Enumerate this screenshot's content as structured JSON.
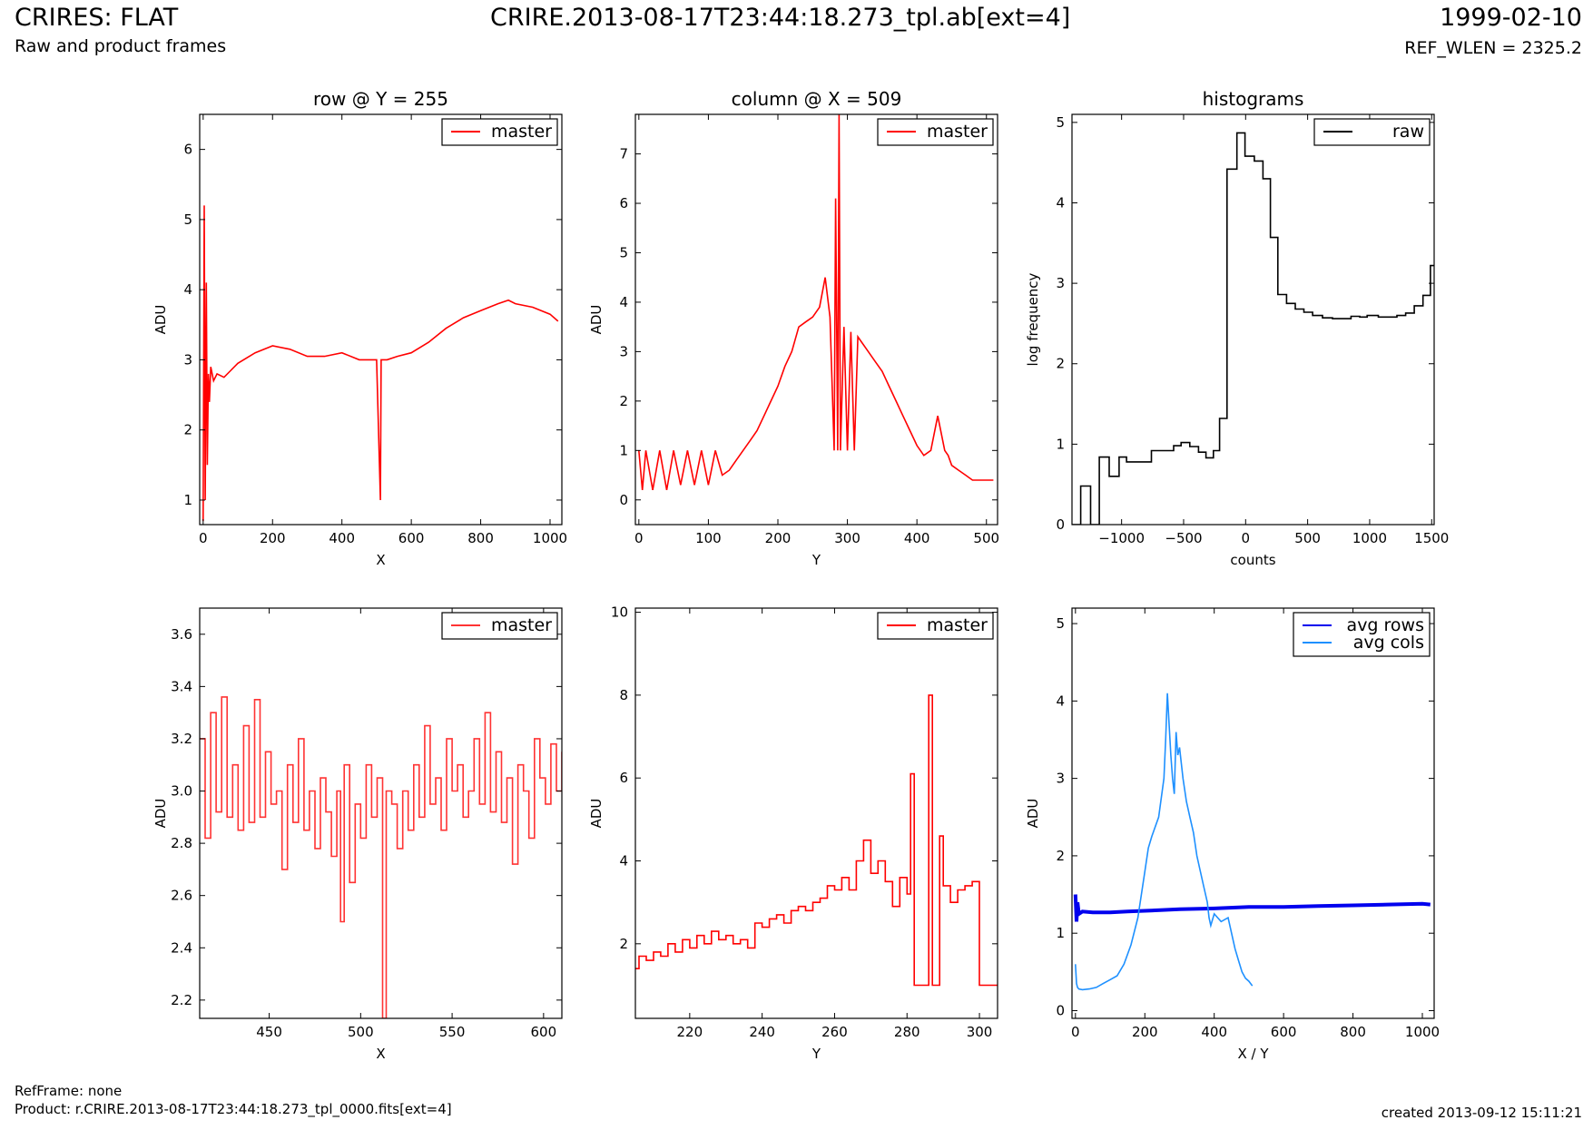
{
  "header": {
    "title": "CRIRES: FLAT",
    "subtitle": "Raw and product frames",
    "file": "CRIRE.2013-08-17T23:44:18.273_tpl.ab[ext=4]",
    "date": "1999-02-10",
    "ref_wlen": "REF_WLEN = 2325.2"
  },
  "footer": {
    "ref_frame": "RefFrame: none",
    "product": "Product: r.CRIRE.2013-08-17T23:44:18.273_tpl_0000.fits[ext=4]",
    "created": "created 2013-09-12 15:11:21"
  },
  "colors": {
    "master": "#ff0000",
    "master_zoom": "#ff3333",
    "raw": "#000000",
    "avg_rows": "#0000ee",
    "avg_cols": "#1e90ff"
  },
  "chart_data": [
    {
      "type": "line",
      "title": "row @ Y = 255",
      "xlabel": "X",
      "ylabel": "ADU",
      "xlim": [
        -10,
        1034
      ],
      "ylim": [
        0.65,
        6.5
      ],
      "xticks": [
        0,
        200,
        400,
        600,
        800,
        1000
      ],
      "yticks": [
        1,
        2,
        3,
        4,
        5,
        6
      ],
      "legend": "top-right",
      "series": [
        {
          "name": "master",
          "color": "#ff0000",
          "x": [
            0,
            3,
            6,
            9,
            12,
            15,
            18,
            22,
            30,
            40,
            60,
            80,
            100,
            150,
            200,
            250,
            300,
            350,
            400,
            450,
            500,
            511,
            513,
            530,
            560,
            600,
            650,
            700,
            750,
            800,
            850,
            880,
            900,
            950,
            1000,
            1023
          ],
          "y": [
            0.7,
            5.2,
            1.0,
            4.1,
            1.5,
            2.8,
            2.4,
            2.9,
            2.7,
            2.8,
            2.75,
            2.85,
            2.95,
            3.1,
            3.2,
            3.15,
            3.05,
            3.05,
            3.1,
            3.0,
            3.0,
            1.0,
            3.0,
            3.0,
            3.05,
            3.1,
            3.25,
            3.45,
            3.6,
            3.7,
            3.8,
            3.85,
            3.8,
            3.75,
            3.65,
            3.55
          ]
        }
      ]
    },
    {
      "type": "line",
      "title": "column @ X = 509",
      "xlabel": "Y",
      "ylabel": "ADU",
      "xlim": [
        -5,
        516
      ],
      "ylim": [
        -0.5,
        7.8
      ],
      "xticks": [
        0,
        100,
        200,
        300,
        400,
        500
      ],
      "yticks": [
        0,
        1,
        2,
        3,
        4,
        5,
        6,
        7
      ],
      "legend": "top-right",
      "series": [
        {
          "name": "master",
          "color": "#ff0000",
          "x": [
            0,
            5,
            10,
            20,
            30,
            40,
            50,
            60,
            70,
            80,
            90,
            100,
            110,
            120,
            130,
            140,
            150,
            160,
            170,
            180,
            190,
            200,
            210,
            220,
            230,
            240,
            250,
            260,
            268,
            275,
            281,
            283,
            286,
            288,
            290,
            295,
            300,
            305,
            310,
            315,
            320,
            330,
            340,
            350,
            360,
            370,
            380,
            390,
            400,
            410,
            420,
            430,
            440,
            445,
            450,
            460,
            470,
            480,
            490,
            500,
            510
          ],
          "y": [
            1.0,
            0.2,
            1.0,
            0.2,
            1.0,
            0.2,
            1.0,
            0.3,
            1.0,
            0.3,
            1.0,
            0.3,
            1.0,
            0.5,
            0.6,
            0.8,
            1.0,
            1.2,
            1.4,
            1.7,
            2.0,
            2.3,
            2.7,
            3.0,
            3.5,
            3.6,
            3.7,
            3.9,
            4.5,
            3.7,
            1.0,
            6.1,
            1.0,
            7.8,
            1.0,
            3.5,
            1.0,
            3.4,
            1.0,
            3.3,
            3.2,
            3.0,
            2.8,
            2.6,
            2.3,
            2.0,
            1.7,
            1.4,
            1.1,
            0.9,
            1.0,
            1.7,
            1.0,
            0.9,
            0.7,
            0.6,
            0.5,
            0.4,
            0.4,
            0.4,
            0.4
          ]
        }
      ]
    },
    {
      "type": "line",
      "title": "histograms",
      "xlabel": "counts",
      "ylabel": "log frequency",
      "xlim": [
        -1400,
        1520
      ],
      "ylim": [
        0,
        5.1
      ],
      "xticks": [
        -1000,
        -500,
        0,
        500,
        1000,
        1500
      ],
      "xtick_labels": [
        "−1000",
        "−500",
        "0",
        "500",
        "1000",
        "1500"
      ],
      "yticks": [
        0,
        1,
        2,
        3,
        4,
        5
      ],
      "legend": "top-right",
      "series": [
        {
          "name": "raw",
          "color": "#000000",
          "step": true,
          "x": [
            -1400,
            -1330,
            -1250,
            -1180,
            -1100,
            -1020,
            -960,
            -900,
            -760,
            -650,
            -580,
            -520,
            -450,
            -380,
            -320,
            -260,
            -210,
            -150,
            -70,
            -5,
            70,
            140,
            200,
            260,
            330,
            400,
            470,
            540,
            620,
            700,
            770,
            850,
            920,
            980,
            1070,
            1140,
            1220,
            1290,
            1360,
            1430,
            1490,
            1520
          ],
          "y": [
            0,
            0.48,
            0,
            0.84,
            0.6,
            0.84,
            0.78,
            0.78,
            0.92,
            0.92,
            0.98,
            1.02,
            0.97,
            0.9,
            0.83,
            0.92,
            1.32,
            4.42,
            4.87,
            4.58,
            4.52,
            4.3,
            3.57,
            2.86,
            2.75,
            2.68,
            2.64,
            2.6,
            2.57,
            2.56,
            2.56,
            2.59,
            2.58,
            2.6,
            2.58,
            2.58,
            2.6,
            2.63,
            2.72,
            2.85,
            3.22,
            3.22
          ]
        }
      ]
    },
    {
      "type": "line",
      "xlabel": "X",
      "ylabel": "ADU",
      "xlim": [
        412,
        610
      ],
      "ylim": [
        2.13,
        3.7
      ],
      "xticks": [
        450,
        500,
        550,
        600
      ],
      "yticks": [
        2.2,
        2.4,
        2.6,
        2.8,
        3.0,
        3.2,
        3.4,
        3.6
      ],
      "legend": "top-right",
      "series": [
        {
          "name": "master",
          "color": "#ff3333",
          "step": true,
          "x": [
            412,
            415,
            418,
            421,
            424,
            427,
            430,
            433,
            436,
            439,
            442,
            445,
            448,
            451,
            454,
            457,
            460,
            463,
            466,
            469,
            472,
            475,
            478,
            481,
            484,
            487,
            489,
            491,
            494,
            497,
            500,
            503,
            506,
            509,
            512,
            514,
            517,
            520,
            523,
            526,
            529,
            532,
            535,
            538,
            541,
            544,
            547,
            550,
            553,
            556,
            559,
            562,
            565,
            568,
            571,
            574,
            577,
            580,
            583,
            586,
            589,
            592,
            595,
            598,
            601,
            604,
            607,
            610
          ],
          "y": [
            3.2,
            2.82,
            3.3,
            2.92,
            3.36,
            2.9,
            3.1,
            2.85,
            3.25,
            2.88,
            3.35,
            2.9,
            3.15,
            2.95,
            3.0,
            2.7,
            3.1,
            2.88,
            3.2,
            2.85,
            3.0,
            2.78,
            3.05,
            2.92,
            2.75,
            3.0,
            2.5,
            3.1,
            2.65,
            2.95,
            2.82,
            3.1,
            2.9,
            3.05,
            2.13,
            3.0,
            2.95,
            2.78,
            3.0,
            2.85,
            3.1,
            2.9,
            3.25,
            2.95,
            3.05,
            2.85,
            3.2,
            3.0,
            3.1,
            2.9,
            3.0,
            3.2,
            2.95,
            3.3,
            2.92,
            3.15,
            2.88,
            3.05,
            2.72,
            3.1,
            3.0,
            2.82,
            3.2,
            3.05,
            2.95,
            3.18,
            3.0,
            3.15
          ]
        }
      ]
    },
    {
      "type": "line",
      "xlabel": "Y",
      "ylabel": "ADU",
      "xlim": [
        205,
        305
      ],
      "ylim": [
        0.2,
        10.1
      ],
      "xticks": [
        220,
        240,
        260,
        280,
        300
      ],
      "yticks": [
        2,
        4,
        6,
        8,
        10
      ],
      "legend": "top-right",
      "series": [
        {
          "name": "master",
          "color": "#ff0000",
          "step": true,
          "x": [
            205,
            206,
            208,
            210,
            212,
            214,
            216,
            218,
            220,
            222,
            224,
            226,
            228,
            230,
            232,
            234,
            236,
            238,
            240,
            242,
            244,
            246,
            248,
            250,
            252,
            254,
            256,
            258,
            260,
            262,
            264,
            266,
            268,
            270,
            272,
            274,
            276,
            278,
            280,
            281,
            282,
            283,
            286,
            287,
            288,
            289,
            290,
            292,
            294,
            296,
            298,
            300,
            305
          ],
          "y": [
            1.4,
            1.7,
            1.6,
            1.8,
            1.7,
            2.0,
            1.8,
            2.1,
            1.9,
            2.2,
            2.0,
            2.3,
            2.1,
            2.2,
            2.0,
            2.1,
            1.9,
            2.5,
            2.4,
            2.6,
            2.7,
            2.5,
            2.8,
            2.9,
            2.8,
            3.0,
            3.1,
            3.4,
            3.3,
            3.6,
            3.3,
            4.0,
            4.5,
            3.7,
            4.0,
            3.5,
            2.9,
            3.6,
            3.2,
            6.1,
            1.0,
            1.0,
            8.0,
            1.0,
            1.0,
            4.6,
            3.4,
            3.0,
            3.3,
            3.4,
            3.5,
            1.0,
            1.0
          ]
        }
      ]
    },
    {
      "type": "line",
      "xlabel": "X / Y",
      "ylabel": "ADU",
      "xlim": [
        -10,
        1034
      ],
      "ylim": [
        -0.1,
        5.2
      ],
      "xticks": [
        0,
        200,
        400,
        600,
        800,
        1000
      ],
      "yticks": [
        0,
        1,
        2,
        3,
        4,
        5
      ],
      "legend": "top-right",
      "series": [
        {
          "name": "avg rows",
          "color": "#0000ee",
          "x": [
            0,
            3,
            6,
            10,
            20,
            50,
            100,
            150,
            200,
            300,
            400,
            500,
            600,
            700,
            800,
            900,
            1000,
            1023
          ],
          "y": [
            1.5,
            1.15,
            1.4,
            1.25,
            1.28,
            1.27,
            1.27,
            1.28,
            1.29,
            1.31,
            1.32,
            1.34,
            1.34,
            1.35,
            1.36,
            1.37,
            1.38,
            1.37
          ]
        },
        {
          "name": "avg cols",
          "color": "#1e90ff",
          "x": [
            0,
            3,
            6,
            10,
            20,
            40,
            60,
            80,
            100,
            120,
            140,
            160,
            180,
            200,
            210,
            220,
            240,
            255,
            260,
            265,
            270,
            275,
            280,
            285,
            290,
            295,
            300,
            305,
            310,
            320,
            330,
            340,
            350,
            360,
            370,
            380,
            385,
            390,
            400,
            420,
            440,
            450,
            460,
            470,
            480,
            490,
            500,
            510
          ],
          "y": [
            0.6,
            0.35,
            0.3,
            0.28,
            0.27,
            0.28,
            0.3,
            0.35,
            0.4,
            0.45,
            0.6,
            0.85,
            1.2,
            1.8,
            2.1,
            2.25,
            2.5,
            3.0,
            3.5,
            4.1,
            3.7,
            3.3,
            3.0,
            2.8,
            3.6,
            3.3,
            3.4,
            3.2,
            3.0,
            2.7,
            2.5,
            2.3,
            2.0,
            1.8,
            1.6,
            1.4,
            1.2,
            1.1,
            1.25,
            1.15,
            1.2,
            1.0,
            0.8,
            0.65,
            0.5,
            0.42,
            0.38,
            0.32
          ]
        }
      ]
    }
  ]
}
